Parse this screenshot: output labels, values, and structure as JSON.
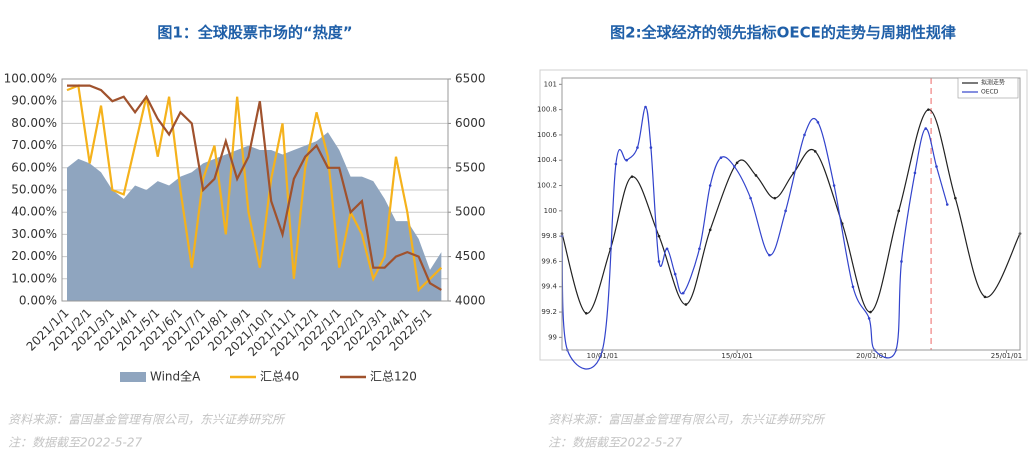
{
  "chart_data": [
    {
      "type": "line",
      "title": "图1：全球股票市场的“热度”",
      "categories": [
        "2021/1/1",
        null,
        "2021/2/1",
        null,
        "2021/3/1",
        null,
        "2021/4/1",
        null,
        "2021/5/1",
        null,
        "2021/6/1",
        null,
        "2021/7/1",
        null,
        "2021/8/1",
        null,
        "2021/9/1",
        null,
        "2021/10/1",
        null,
        "2021/11/1",
        null,
        "2021/12/1",
        null,
        "2022/1/1",
        null,
        "2022/2/1",
        null,
        "2022/3/1",
        null,
        "2022/4/1",
        null,
        "2022/5/1",
        null
      ],
      "series": [
        {
          "name": "Wind全A",
          "color": "#8fa5bf",
          "style": "area",
          "axis": "y2",
          "values": [
            5500,
            5600,
            5550,
            5450,
            5250,
            5150,
            5300,
            5250,
            5350,
            5300,
            5400,
            5450,
            5550,
            5600,
            5650,
            5700,
            5750,
            5700,
            5700,
            5650,
            5700,
            5750,
            5800,
            5900,
            5700,
            5400,
            5400,
            5350,
            5150,
            4900,
            4900,
            4700,
            4350,
            4550
          ]
        },
        {
          "name": "汇总40",
          "color": "#f5b21c",
          "style": "line",
          "values": [
            95,
            97,
            62,
            88,
            50,
            48,
            70,
            92,
            65,
            92,
            50,
            15,
            55,
            70,
            30,
            92,
            40,
            15,
            55,
            80,
            10,
            60,
            85,
            65,
            15,
            40,
            30,
            10,
            20,
            65,
            40,
            5,
            10,
            15
          ]
        },
        {
          "name": "汇总120",
          "color": "#a0522d",
          "style": "line",
          "values": [
            97,
            97,
            97,
            95,
            90,
            92,
            85,
            92,
            82,
            75,
            85,
            80,
            50,
            55,
            72,
            55,
            65,
            90,
            45,
            30,
            55,
            65,
            70,
            60,
            60,
            40,
            45,
            15,
            15,
            20,
            22,
            20,
            8,
            5
          ]
        }
      ],
      "ylim": [
        0,
        100
      ],
      "yticks": [
        {
          "value": 0,
          "label": "0.00%"
        },
        {
          "value": 10,
          "label": "10.00%"
        },
        {
          "value": 20,
          "label": "20.00%"
        },
        {
          "value": 30,
          "label": "30.00%"
        },
        {
          "value": 40,
          "label": "40.00%"
        },
        {
          "value": 50,
          "label": "50.00%"
        },
        {
          "value": 60,
          "label": "60.00%"
        },
        {
          "value": 70,
          "label": "70.00%"
        },
        {
          "value": 80,
          "label": "80.00%"
        },
        {
          "value": 90,
          "label": "90.00%"
        },
        {
          "value": 100,
          "label": "100.00%"
        }
      ],
      "y2lim": [
        4000,
        6500
      ],
      "y2ticks": [
        4000,
        4500,
        5000,
        5500,
        6000,
        6500
      ],
      "grid": true,
      "legend": "bottom",
      "notes": [
        "资料来源：富国基金管理有限公司，东兴证券研究所",
        "注：数据截至2022-5-27"
      ]
    },
    {
      "type": "line",
      "title": "图2:全球经济的领先指标OECE的走势与周期性规律",
      "xlim": [
        2008.5,
        2025.5
      ],
      "xticks": [
        {
          "value": 2010,
          "label": "10/01/01"
        },
        {
          "value": 2015,
          "label": "15/01/01"
        },
        {
          "value": 2020,
          "label": "20/01/01"
        },
        {
          "value": 2025,
          "label": "25/01/01"
        }
      ],
      "ylim": [
        98.9,
        101.05
      ],
      "yticks": [
        99,
        99.2,
        99.4,
        99.6,
        99.8,
        100,
        100.2,
        100.4,
        100.6,
        100.8,
        101
      ],
      "series": [
        {
          "name": "拟测走势",
          "color": "#222222",
          "style": "line",
          "x": [
            2008.5,
            2009.4,
            2010.3,
            2011.1,
            2012.1,
            2013.1,
            2014.0,
            2015.0,
            2015.7,
            2016.4,
            2017.1,
            2017.9,
            2018.9,
            2019.95,
            2021.0,
            2022.1,
            2023.1,
            2024.2,
            2025.5
          ],
          "values": [
            99.82,
            99.19,
            99.7,
            100.27,
            99.8,
            99.26,
            99.85,
            100.38,
            100.28,
            100.1,
            100.3,
            100.47,
            99.9,
            99.2,
            100.0,
            100.8,
            100.1,
            99.32,
            99.82
          ]
        },
        {
          "name": "OECD",
          "color": "#3344cc",
          "style": "line",
          "x": [
            2008.5,
            2008.7,
            2010.0,
            2010.5,
            2010.9,
            2011.3,
            2011.6,
            2011.8,
            2012.1,
            2012.4,
            2012.7,
            2013.0,
            2013.6,
            2014.0,
            2014.4,
            2014.9,
            2015.5,
            2016.2,
            2016.8,
            2017.5,
            2018.0,
            2018.6,
            2019.3,
            2019.9,
            2020.1,
            2020.9,
            2021.1,
            2021.6,
            2022.0,
            2022.4,
            2022.8
          ],
          "values": [
            99.8,
            98.9,
            98.9,
            100.37,
            100.4,
            100.5,
            100.82,
            100.5,
            99.6,
            99.7,
            99.5,
            99.35,
            99.7,
            100.2,
            100.42,
            100.35,
            100.1,
            99.65,
            100.0,
            100.6,
            100.7,
            100.2,
            99.4,
            99.15,
            98.9,
            98.9,
            99.6,
            100.3,
            100.65,
            100.35,
            100.05
          ]
        }
      ],
      "vline": {
        "x": 2022.2,
        "color": "#f08080"
      },
      "smooth": true,
      "markers": true,
      "legend": "top-right",
      "notes": [
        "资料来源：富国基金管理有限公司，东兴证券研究所",
        "注：数据截至2022-5-27"
      ]
    }
  ]
}
